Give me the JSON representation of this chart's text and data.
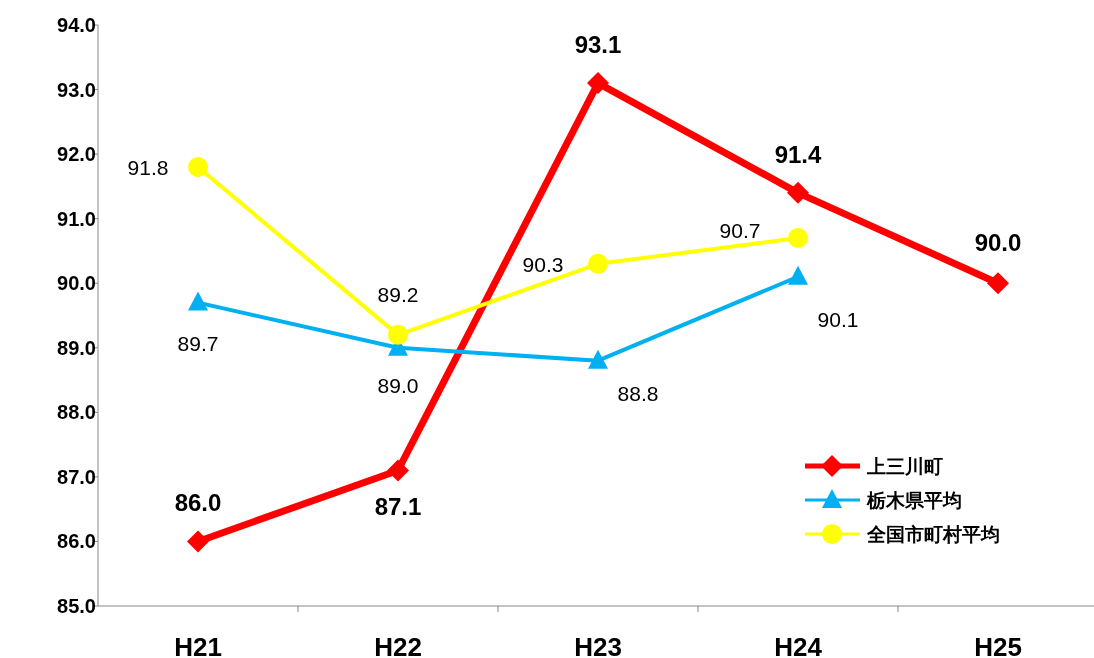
{
  "chart_data": {
    "type": "line",
    "categories": [
      "H21",
      "H22",
      "H23",
      "H24",
      "H25"
    ],
    "ylim": [
      85,
      94
    ],
    "yticks": [
      {
        "value": 85,
        "label": "85.0"
      },
      {
        "value": 86,
        "label": "86.0"
      },
      {
        "value": 87,
        "label": "87.0"
      },
      {
        "value": 88,
        "label": "88.0"
      },
      {
        "value": 89,
        "label": "89.0"
      },
      {
        "value": 90,
        "label": "90.0"
      },
      {
        "value": 91,
        "label": "91.0"
      },
      {
        "value": 92,
        "label": "92.0"
      },
      {
        "value": 93,
        "label": "93.0"
      },
      {
        "value": 94,
        "label": "94.0"
      }
    ],
    "grid": false,
    "legend": "bottom right",
    "line_style": "solid",
    "series": [
      {
        "name": "上三川町",
        "color": "#ff0000",
        "marker": "diamond",
        "values": [
          86.0,
          87.1,
          93.1,
          91.4,
          90.0
        ],
        "value_labels": [
          "86.0",
          "87.1",
          "93.1",
          "91.4",
          "90.0"
        ]
      },
      {
        "name": "栃木県平均",
        "color": "#00b0f0",
        "marker": "triangle",
        "values": [
          89.7,
          89.0,
          88.8,
          90.1,
          null
        ],
        "value_labels": [
          "89.7",
          "89.0",
          "88.8",
          "90.1",
          null
        ]
      },
      {
        "name": "全国市町村平均",
        "color": "#ffff00",
        "marker": "circle",
        "values": [
          91.8,
          89.2,
          90.3,
          90.7,
          null
        ],
        "value_labels": [
          "91.8",
          "89.2",
          "90.3",
          "90.7",
          null
        ]
      }
    ]
  }
}
